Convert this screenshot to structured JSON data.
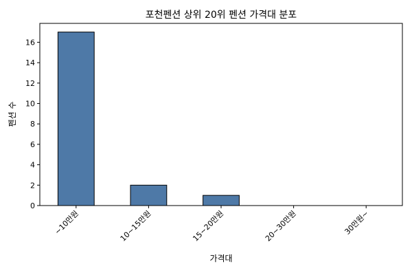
{
  "chart_data": {
    "type": "bar",
    "title": "포천펜션 상위 20위 펜션 가격대 분포",
    "xlabel": "가격대",
    "ylabel": "펜션 수",
    "categories": [
      "~10만원",
      "10~15만원",
      "15~20만원",
      "20~30만원",
      "30만원~"
    ],
    "values": [
      17,
      2,
      1,
      0,
      0
    ],
    "ylim": [
      0,
      17.85
    ],
    "yticks": [
      0,
      2,
      4,
      6,
      8,
      10,
      12,
      14,
      16
    ],
    "bar_color": "#4e79a7",
    "edge_color": "#000000",
    "grid": false,
    "legend": "none"
  }
}
